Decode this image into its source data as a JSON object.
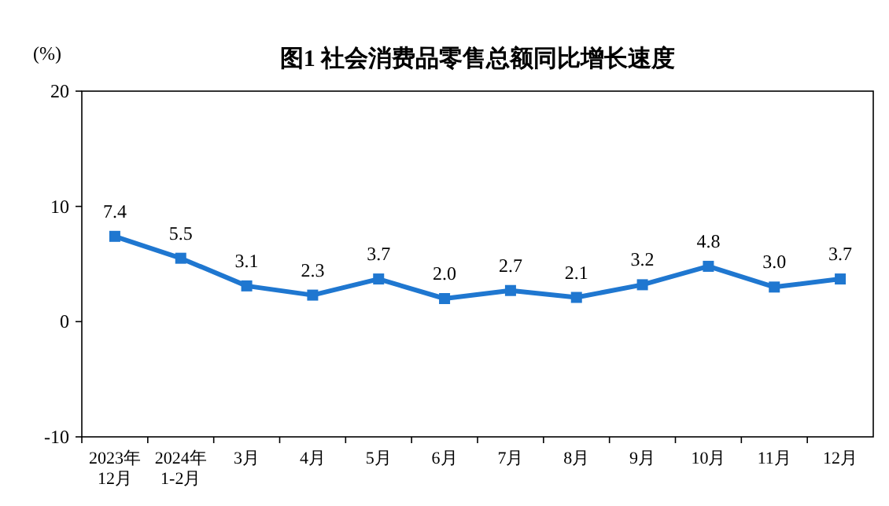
{
  "chart_data": {
    "type": "line",
    "title": "图1 社会消费品零售总额同比增长速度",
    "ylabel": "(%)",
    "categories": [
      "2023年\n12月",
      "2024年\n1-2月",
      "3月",
      "4月",
      "5月",
      "6月",
      "7月",
      "8月",
      "9月",
      "10月",
      "11月",
      "12月"
    ],
    "series": [
      {
        "color": "#1f77d0",
        "values": [
          7.4,
          5.5,
          3.1,
          2.3,
          3.7,
          2.0,
          2.7,
          2.1,
          3.2,
          4.8,
          3.0,
          3.7
        ],
        "value_labels": [
          "7.4",
          "5.5",
          "3.1",
          "2.3",
          "3.7",
          "2.0",
          "2.7",
          "2.1",
          "3.2",
          "4.8",
          "3.0",
          "3.7"
        ]
      }
    ],
    "ylim": [
      -10,
      20
    ],
    "yticks": [
      -10,
      0,
      10,
      20
    ],
    "marker": "square",
    "line_style": "solid"
  }
}
